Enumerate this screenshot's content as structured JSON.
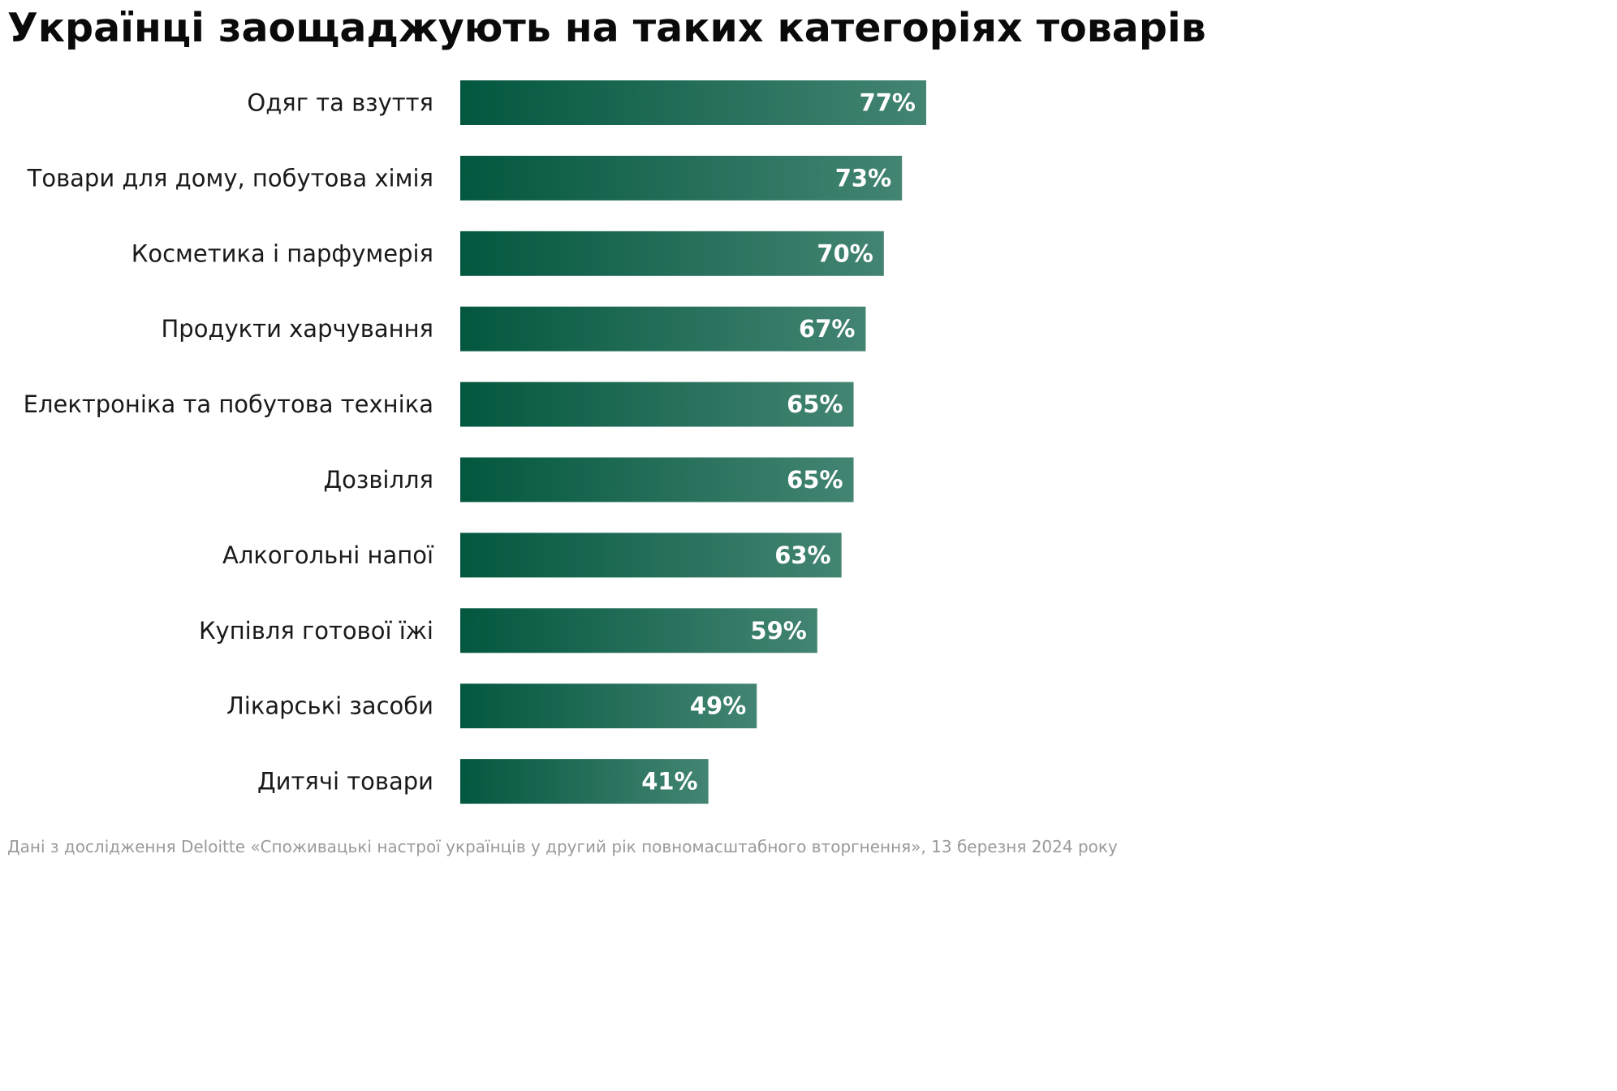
{
  "chart_data": {
    "type": "bar",
    "orientation": "horizontal",
    "title": "Українці заощаджують на таких категоріях товарів",
    "categories": [
      "Одяг та взуття",
      "Товари для дому, побутова хімія",
      "Косметика і парфумерія",
      "Продукти харчування",
      "Електроніка та побутова техніка",
      "Дозвілля",
      "Алкогольні напої",
      "Купівля готової їжі",
      "Лікарські засоби",
      "Дитячі товари"
    ],
    "values": [
      77,
      73,
      70,
      67,
      65,
      65,
      63,
      59,
      49,
      41
    ],
    "value_labels": [
      "77%",
      "73%",
      "70%",
      "67%",
      "65%",
      "65%",
      "63%",
      "59%",
      "49%",
      "41%"
    ],
    "unit": "%",
    "grid": false,
    "legend": "none",
    "colors": {
      "bar_start": "#03573f",
      "bar_end": "#438473"
    },
    "source": "Дані з дослідження Deloitte «Споживацькі настрої українців у другий рік повномасштабного вторгнення», 13 березня 2024 року"
  }
}
